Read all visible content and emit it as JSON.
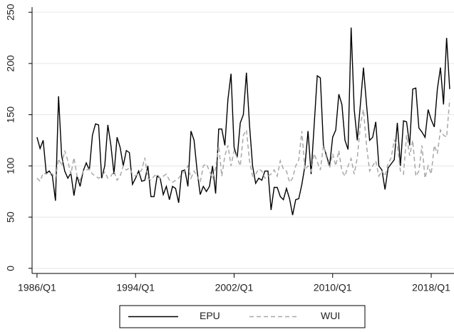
{
  "chart_data": {
    "type": "line",
    "x": [
      1986,
      1986.25,
      1986.5,
      1986.75,
      1987,
      1987.25,
      1987.5,
      1987.75,
      1988,
      1988.25,
      1988.5,
      1988.75,
      1989,
      1989.25,
      1989.5,
      1989.75,
      1990,
      1990.25,
      1990.5,
      1990.75,
      1991,
      1991.25,
      1991.5,
      1991.75,
      1992,
      1992.25,
      1992.5,
      1992.75,
      1993,
      1993.25,
      1993.5,
      1993.75,
      1994,
      1994.25,
      1994.5,
      1994.75,
      1995,
      1995.25,
      1995.5,
      1995.75,
      1996,
      1996.25,
      1996.5,
      1996.75,
      1997,
      1997.25,
      1997.5,
      1997.75,
      1998,
      1998.25,
      1998.5,
      1998.75,
      1999,
      1999.25,
      1999.5,
      1999.75,
      2000,
      2000.25,
      2000.5,
      2000.75,
      2001,
      2001.25,
      2001.5,
      2001.75,
      2002,
      2002.25,
      2002.5,
      2002.75,
      2003,
      2003.25,
      2003.5,
      2003.75,
      2004,
      2004.25,
      2004.5,
      2004.75,
      2005,
      2005.25,
      2005.5,
      2005.75,
      2006,
      2006.25,
      2006.5,
      2006.75,
      2007,
      2007.25,
      2007.5,
      2007.75,
      2008,
      2008.25,
      2008.5,
      2008.75,
      2009,
      2009.25,
      2009.5,
      2009.75,
      2010,
      2010.25,
      2010.5,
      2010.75,
      2011,
      2011.25,
      2011.5,
      2011.75,
      2012,
      2012.25,
      2012.5,
      2012.75,
      2013,
      2013.25,
      2013.5,
      2013.75,
      2014,
      2014.25,
      2014.5,
      2014.75,
      2015,
      2015.25,
      2015.5,
      2015.75,
      2016,
      2016.25,
      2016.5,
      2016.75,
      2017,
      2017.25,
      2017.5,
      2017.75,
      2018,
      2018.25,
      2018.5,
      2018.75,
      2019,
      2019.25,
      2019.5
    ],
    "series": [
      {
        "name": "EPU",
        "color": "#000000",
        "dashed": false,
        "values": [
          128,
          117,
          125,
          93,
          95,
          90,
          66,
          168,
          110,
          95,
          88,
          93,
          71,
          90,
          80,
          95,
          103,
          96,
          130,
          141,
          140,
          88,
          100,
          140,
          120,
          92,
          128,
          118,
          100,
          115,
          113,
          82,
          88,
          95,
          85,
          86,
          100,
          70,
          70,
          90,
          88,
          72,
          80,
          67,
          80,
          78,
          64,
          95,
          96,
          80,
          134,
          125,
          95,
          72,
          80,
          75,
          80,
          100,
          73,
          136,
          136,
          120,
          165,
          190,
          118,
          108,
          142,
          150,
          191,
          140,
          100,
          83,
          88,
          86,
          95,
          95,
          57,
          79,
          79,
          70,
          67,
          78,
          68,
          52,
          67,
          68,
          82,
          100,
          134,
          92,
          140,
          188,
          186,
          120,
          110,
          100,
          128,
          135,
          170,
          160,
          125,
          116,
          235,
          155,
          125,
          160,
          196,
          160,
          125,
          128,
          143,
          100,
          96,
          77,
          98,
          102,
          106,
          142,
          100,
          144,
          143,
          120,
          175,
          176,
          137,
          133,
          128,
          155,
          145,
          138,
          175,
          196,
          160,
          225,
          175
        ]
      },
      {
        "name": "WUI",
        "color": "#a8a8a8",
        "dashed": true,
        "values": [
          88,
          85,
          93,
          92,
          94,
          92,
          88,
          107,
          100,
          115,
          105,
          92,
          108,
          90,
          86,
          95,
          96,
          97,
          92,
          90,
          88,
          90,
          94,
          88,
          90,
          95,
          86,
          90,
          100,
          96,
          98,
          92,
          90,
          93,
          96,
          108,
          88,
          86,
          90,
          92,
          88,
          90,
          92,
          86,
          84,
          86,
          88,
          92,
          95,
          100,
          88,
          95,
          90,
          84,
          100,
          102,
          95,
          88,
          98,
          120,
          90,
          110,
          120,
          100,
          115,
          108,
          100,
          130,
          135,
          105,
          90,
          92,
          97,
          95,
          88,
          90,
          92,
          96,
          90,
          105,
          97,
          95,
          84,
          88,
          100,
          106,
          134,
          96,
          100,
          95,
          112,
          104,
          96,
          120,
          108,
          98,
          112,
          100,
          115,
          95,
          90,
          100,
          107,
          92,
          108,
          140,
          155,
          120,
          95,
          100,
          105,
          90,
          95,
          90,
          102,
          108,
          125,
          120,
          95,
          92,
          130,
          110,
          125,
          90,
          95,
          120,
          88,
          100,
          92,
          120,
          112,
          135,
          130,
          128,
          165
        ]
      }
    ],
    "xlim": [
      1985.6,
      2019.85
    ],
    "xticks": [
      {
        "value": 1986,
        "label": "1986/Q1"
      },
      {
        "value": 1994,
        "label": "1994/Q1"
      },
      {
        "value": 2002,
        "label": "2002/Q1"
      },
      {
        "value": 2010,
        "label": "2010/Q1"
      },
      {
        "value": 2018,
        "label": "2018/Q1"
      }
    ],
    "ylim": [
      -5,
      255
    ],
    "yticks": [
      0,
      50,
      100,
      150,
      200,
      250
    ],
    "grid": true,
    "legend": "bottom"
  }
}
